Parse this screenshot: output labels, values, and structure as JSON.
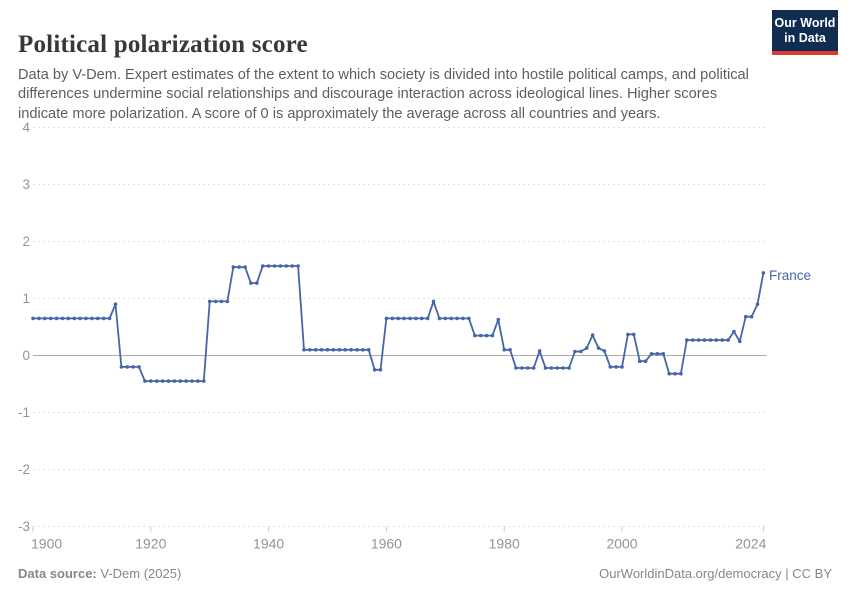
{
  "header": {
    "title": "Political polarization score",
    "subtitle": "Data by V-Dem. Expert estimates of the extent to which society is divided into hostile political camps, and political differences undermine social relationships and discourage interaction across ideological lines. Higher scores indicate more polarization. A score of 0 is approximately the average across all countries and years.",
    "logo": {
      "line1": "Our World",
      "line2": "in Data",
      "bg_color": "#102d50",
      "accent_color": "#dc3a34"
    }
  },
  "chart_data": {
    "type": "line",
    "title": "Political polarization score",
    "xlabel": "",
    "ylabel": "",
    "xlim": [
      1900,
      2024
    ],
    "ylim": [
      -3,
      4
    ],
    "xticks": [
      1900,
      1920,
      1940,
      1960,
      1980,
      2000,
      2024
    ],
    "yticks": [
      4,
      3,
      2,
      1,
      0,
      -1,
      -2,
      -3
    ],
    "grid": "horizontal dashed gridlines, solid zero line",
    "legend_position": "end-of-line label",
    "series": [
      {
        "name": "France",
        "color": "#4566a7",
        "points": [
          [
            1900,
            0.65
          ],
          [
            1901,
            0.65
          ],
          [
            1902,
            0.65
          ],
          [
            1903,
            0.65
          ],
          [
            1904,
            0.65
          ],
          [
            1905,
            0.65
          ],
          [
            1906,
            0.65
          ],
          [
            1907,
            0.65
          ],
          [
            1908,
            0.65
          ],
          [
            1909,
            0.65
          ],
          [
            1910,
            0.65
          ],
          [
            1911,
            0.65
          ],
          [
            1912,
            0.65
          ],
          [
            1913,
            0.65
          ],
          [
            1914,
            0.9
          ],
          [
            1915,
            -0.2
          ],
          [
            1916,
            -0.2
          ],
          [
            1917,
            -0.2
          ],
          [
            1918,
            -0.2
          ],
          [
            1919,
            -0.45
          ],
          [
            1920,
            -0.45
          ],
          [
            1921,
            -0.45
          ],
          [
            1922,
            -0.45
          ],
          [
            1923,
            -0.45
          ],
          [
            1924,
            -0.45
          ],
          [
            1925,
            -0.45
          ],
          [
            1926,
            -0.45
          ],
          [
            1927,
            -0.45
          ],
          [
            1928,
            -0.45
          ],
          [
            1929,
            -0.45
          ],
          [
            1930,
            0.95
          ],
          [
            1931,
            0.95
          ],
          [
            1932,
            0.95
          ],
          [
            1933,
            0.95
          ],
          [
            1934,
            1.55
          ],
          [
            1935,
            1.55
          ],
          [
            1936,
            1.55
          ],
          [
            1937,
            1.27
          ],
          [
            1938,
            1.27
          ],
          [
            1939,
            1.57
          ],
          [
            1940,
            1.57
          ],
          [
            1941,
            1.57
          ],
          [
            1942,
            1.57
          ],
          [
            1943,
            1.57
          ],
          [
            1944,
            1.57
          ],
          [
            1945,
            1.57
          ],
          [
            1946,
            0.1
          ],
          [
            1947,
            0.1
          ],
          [
            1948,
            0.1
          ],
          [
            1949,
            0.1
          ],
          [
            1950,
            0.1
          ],
          [
            1951,
            0.1
          ],
          [
            1952,
            0.1
          ],
          [
            1953,
            0.1
          ],
          [
            1954,
            0.1
          ],
          [
            1955,
            0.1
          ],
          [
            1956,
            0.1
          ],
          [
            1957,
            0.1
          ],
          [
            1958,
            -0.25
          ],
          [
            1959,
            -0.25
          ],
          [
            1960,
            0.65
          ],
          [
            1961,
            0.65
          ],
          [
            1962,
            0.65
          ],
          [
            1963,
            0.65
          ],
          [
            1964,
            0.65
          ],
          [
            1965,
            0.65
          ],
          [
            1966,
            0.65
          ],
          [
            1967,
            0.65
          ],
          [
            1968,
            0.95
          ],
          [
            1969,
            0.65
          ],
          [
            1970,
            0.65
          ],
          [
            1971,
            0.65
          ],
          [
            1972,
            0.65
          ],
          [
            1973,
            0.65
          ],
          [
            1974,
            0.65
          ],
          [
            1975,
            0.35
          ],
          [
            1976,
            0.35
          ],
          [
            1977,
            0.35
          ],
          [
            1978,
            0.35
          ],
          [
            1979,
            0.63
          ],
          [
            1980,
            0.1
          ],
          [
            1981,
            0.1
          ],
          [
            1982,
            -0.22
          ],
          [
            1983,
            -0.22
          ],
          [
            1984,
            -0.22
          ],
          [
            1985,
            -0.22
          ],
          [
            1986,
            0.08
          ],
          [
            1987,
            -0.22
          ],
          [
            1988,
            -0.22
          ],
          [
            1989,
            -0.22
          ],
          [
            1990,
            -0.22
          ],
          [
            1991,
            -0.22
          ],
          [
            1992,
            0.07
          ],
          [
            1993,
            0.07
          ],
          [
            1994,
            0.13
          ],
          [
            1995,
            0.36
          ],
          [
            1996,
            0.13
          ],
          [
            1997,
            0.08
          ],
          [
            1998,
            -0.2
          ],
          [
            1999,
            -0.2
          ],
          [
            2000,
            -0.2
          ],
          [
            2001,
            0.37
          ],
          [
            2002,
            0.37
          ],
          [
            2003,
            -0.1
          ],
          [
            2004,
            -0.1
          ],
          [
            2005,
            0.03
          ],
          [
            2006,
            0.03
          ],
          [
            2007,
            0.03
          ],
          [
            2008,
            -0.32
          ],
          [
            2009,
            -0.32
          ],
          [
            2010,
            -0.32
          ],
          [
            2011,
            0.27
          ],
          [
            2012,
            0.27
          ],
          [
            2013,
            0.27
          ],
          [
            2014,
            0.27
          ],
          [
            2015,
            0.27
          ],
          [
            2016,
            0.27
          ],
          [
            2017,
            0.27
          ],
          [
            2018,
            0.27
          ],
          [
            2019,
            0.42
          ],
          [
            2020,
            0.25
          ],
          [
            2021,
            0.68
          ],
          [
            2022,
            0.68
          ],
          [
            2023,
            0.9
          ],
          [
            2024,
            1.45
          ]
        ]
      }
    ]
  },
  "footer": {
    "source_label": "Data source:",
    "source_value": " V-Dem (2025)",
    "attribution": "OurWorldinData.org/democracy | CC BY"
  }
}
